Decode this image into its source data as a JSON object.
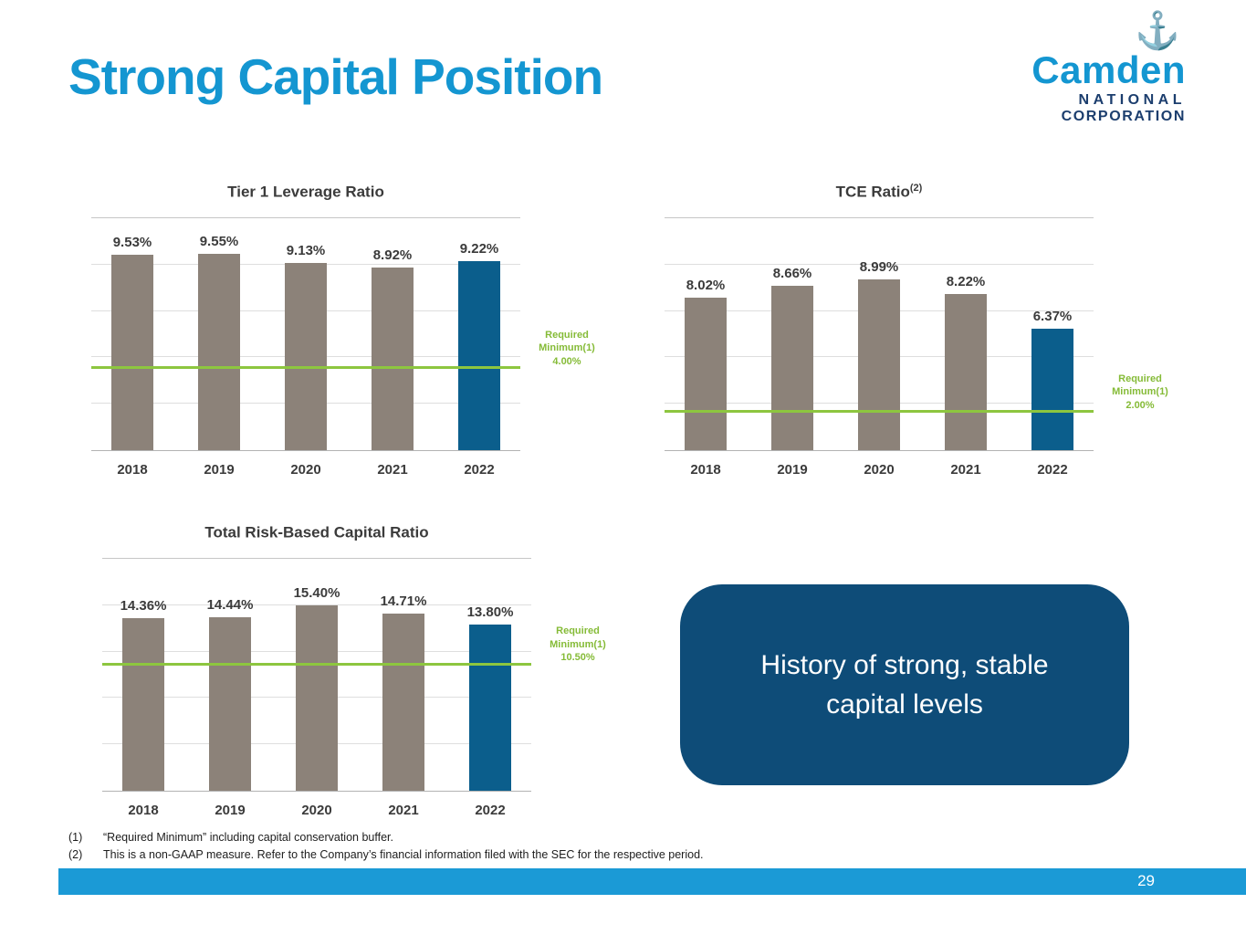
{
  "slide": {
    "title": "Strong Capital Position",
    "page_number": "29"
  },
  "logo": {
    "anchor_icon": "anchor-icon",
    "brand": "Camden",
    "subtitle_line1": "NATIONAL",
    "subtitle_line2": "CORPORATION"
  },
  "callout": {
    "text": "History of strong, stable capital levels"
  },
  "footnotes": [
    {
      "marker": "(1)",
      "text": "“Required Minimum” including capital conservation buffer."
    },
    {
      "marker": "(2)",
      "text": "This is a non-GAAP measure. Refer to the Company’s financial information filed with the SEC for the respective period."
    }
  ],
  "colors": {
    "title_blue": "#1496D1",
    "logo_navy": "#1C3E6E",
    "bar_gray": "#8C8279",
    "bar_highlight_blue": "#0B5E8C",
    "required_minimum_green": "#8DC63F",
    "callout_navy": "#0E4C78",
    "footer_blue": "#1B9AD6"
  },
  "chart_data": [
    {
      "type": "bar",
      "title": "Tier 1 Leverage Ratio",
      "title_sup": "",
      "categories": [
        "2018",
        "2019",
        "2020",
        "2021",
        "2022"
      ],
      "values": [
        9.53,
        9.55,
        9.13,
        8.92,
        9.22
      ],
      "value_labels": [
        "9.53%",
        "9.55%",
        "9.13%",
        "8.92%",
        "9.22%"
      ],
      "ylim": [
        0,
        11.3
      ],
      "grid": true,
      "highlight_index": 4,
      "required_minimum": {
        "label": "Required Minimum(1)",
        "value": 4.0,
        "value_label": "4.00%"
      }
    },
    {
      "type": "bar",
      "title": "TCE Ratio",
      "title_sup": "(2)",
      "categories": [
        "2018",
        "2019",
        "2020",
        "2021",
        "2022"
      ],
      "values": [
        8.02,
        8.66,
        8.99,
        8.22,
        6.37
      ],
      "value_labels": [
        "8.02%",
        "8.66%",
        "8.99%",
        "8.22%",
        "6.37%"
      ],
      "ylim": [
        0,
        12.2
      ],
      "grid": true,
      "highlight_index": 4,
      "required_minimum": {
        "label": "Required Minimum(1)",
        "value": 2.0,
        "value_label": "2.00%"
      }
    },
    {
      "type": "bar",
      "title": "Total Risk-Based Capital Ratio",
      "title_sup": "",
      "categories": [
        "2018",
        "2019",
        "2020",
        "2021",
        "2022"
      ],
      "values": [
        14.36,
        14.44,
        15.4,
        14.71,
        13.8
      ],
      "value_labels": [
        "14.36%",
        "14.44%",
        "15.40%",
        "14.71%",
        "13.80%"
      ],
      "ylim": [
        0,
        19.3
      ],
      "grid": true,
      "highlight_index": 4,
      "required_minimum": {
        "label": "Required Minimum(1)",
        "value": 10.5,
        "value_label": "10.50%"
      }
    }
  ]
}
